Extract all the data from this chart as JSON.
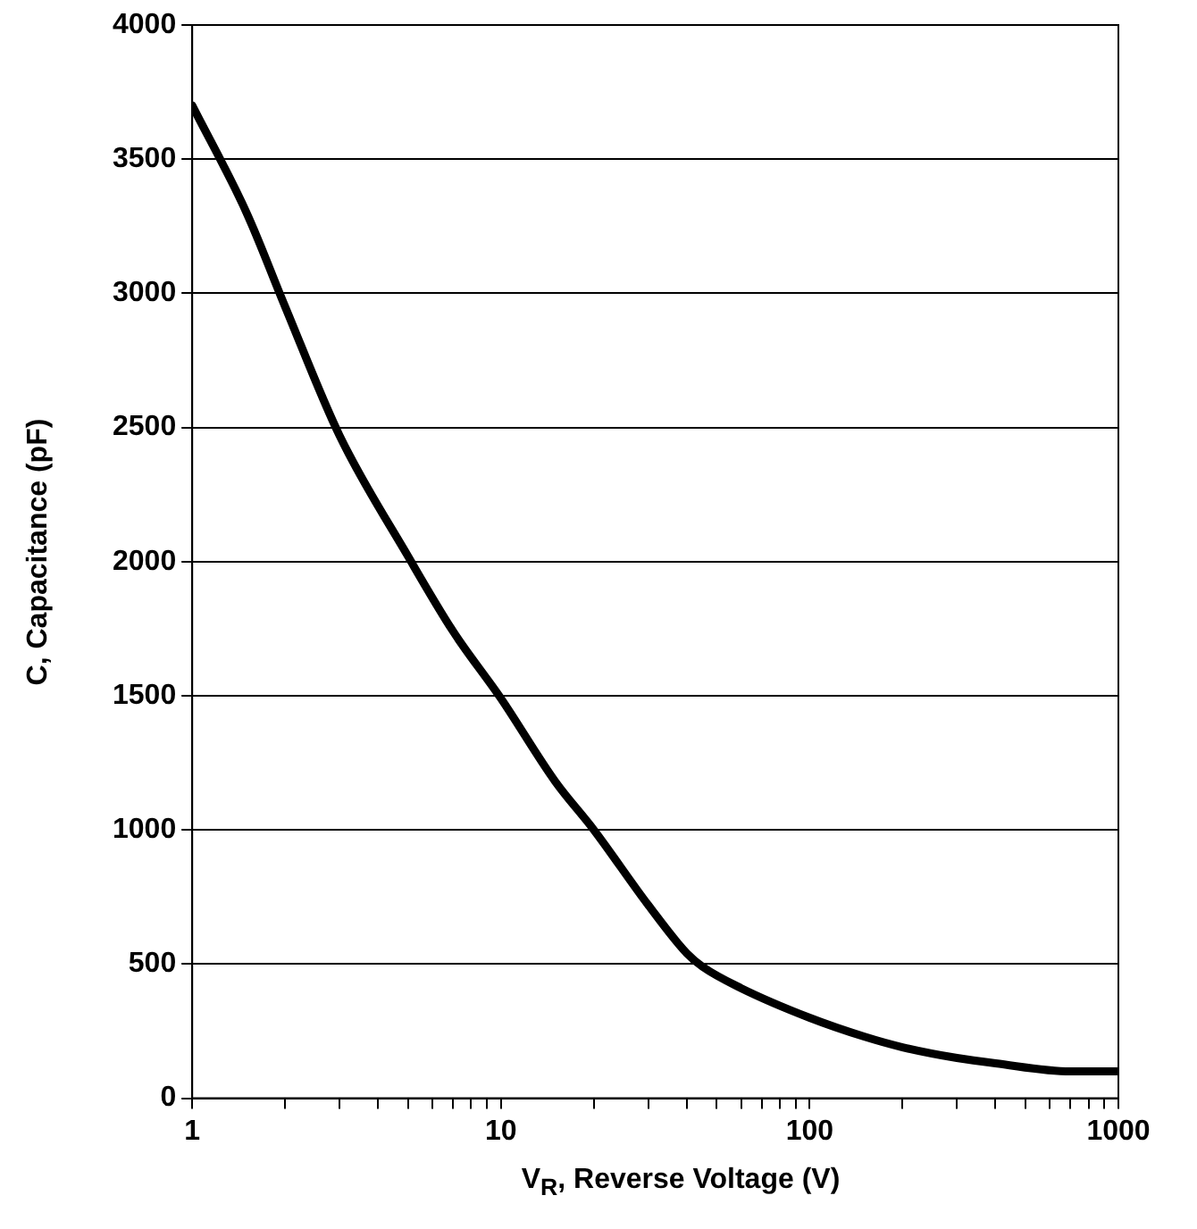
{
  "chart_data": {
    "type": "line",
    "xlabel": "V$_{R}$, Reverse Voltage (V)",
    "ylabel": "C, Capacitance (pF)",
    "log": "x",
    "x": [
      1,
      1.5,
      2,
      3,
      5,
      7,
      10,
      15,
      20,
      30,
      40,
      45,
      60,
      100,
      150,
      200,
      300,
      400,
      700,
      1000
    ],
    "series": [
      {
        "color": "#000000",
        "values": [
          3700,
          3300,
          2950,
          2470,
          2020,
          1740,
          1490,
          1180,
          1000,
          720,
          540,
          490,
          410,
          300,
          230,
          190,
          150,
          130,
          100,
          100
        ]
      }
    ],
    "xlim": [
      1,
      1000
    ],
    "xticks": [
      1,
      {
        "value": 2,
        "label": null
      },
      {
        "value": 3,
        "label": null
      },
      {
        "value": 4,
        "label": null
      },
      {
        "value": 5,
        "label": null
      },
      {
        "value": 6,
        "label": null
      },
      {
        "value": 7,
        "label": null
      },
      {
        "value": 8,
        "label": null
      },
      {
        "value": 9,
        "label": null
      },
      10,
      {
        "value": 20,
        "label": null
      },
      {
        "value": 30,
        "label": null
      },
      {
        "value": 40,
        "label": null
      },
      {
        "value": 50,
        "label": null
      },
      {
        "value": 60,
        "label": null
      },
      {
        "value": 70,
        "label": null
      },
      {
        "value": 80,
        "label": null
      },
      {
        "value": 90,
        "label": null
      },
      100,
      {
        "value": 200,
        "label": null
      },
      {
        "value": 300,
        "label": null
      },
      {
        "value": 400,
        "label": null
      },
      {
        "value": 500,
        "label": null
      },
      {
        "value": 600,
        "label": null
      },
      {
        "value": 700,
        "label": null
      },
      {
        "value": 800,
        "label": null
      },
      {
        "value": 900,
        "label": null
      },
      1000
    ],
    "ylim": [
      0,
      4000
    ],
    "yticks": [
      0,
      500,
      1000,
      1500,
      2000,
      2500,
      3000,
      3500,
      4000
    ],
    "grid": "y",
    "marker": "none",
    "line_style": "solid",
    "legend": false
  }
}
